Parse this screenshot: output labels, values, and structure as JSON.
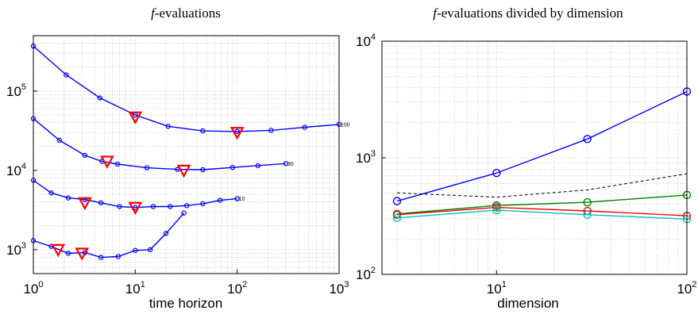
{
  "chart_data": [
    {
      "type": "line",
      "title": "f-evaluations",
      "title_italic": "f",
      "title_rest": "-evaluations",
      "xlabel": "time horizon",
      "ylabel": "",
      "xscale": "log",
      "yscale": "log",
      "xlim": [
        1,
        1000
      ],
      "ylim": [
        500,
        500000
      ],
      "xticks": [
        {
          "base": "10",
          "exp": "0"
        },
        {
          "base": "10",
          "exp": "1"
        },
        {
          "base": "10",
          "exp": "2"
        },
        {
          "base": "10",
          "exp": "3"
        }
      ],
      "yticks": [
        {
          "value": 1000,
          "base": "10",
          "exp": "3"
        },
        {
          "value": 10000,
          "base": "10",
          "exp": "4"
        },
        {
          "value": 100000,
          "base": "10",
          "exp": "5"
        }
      ],
      "grid": true,
      "series": [
        {
          "end_label": "100",
          "color": "#0000ff",
          "points": [
            [
              1,
              370000
            ],
            [
              2.1,
              160000
            ],
            [
              4.5,
              82000
            ],
            [
              10,
              50000
            ],
            [
              21,
              36000
            ],
            [
              46,
              31500
            ],
            [
              100,
              31000
            ],
            [
              215,
              32000
            ],
            [
              460,
              35000
            ],
            [
              1000,
              38000
            ]
          ],
          "markers": [
            [
              10,
              47000
            ],
            [
              100,
              30000
            ]
          ]
        },
        {
          "end_label": "30",
          "color": "#0000ff",
          "points": [
            [
              1,
              45000
            ],
            [
              1.8,
              24000
            ],
            [
              3.2,
              15500
            ],
            [
              4.7,
              13000
            ],
            [
              6.7,
              12000
            ],
            [
              13,
              10800
            ],
            [
              26,
              10300
            ],
            [
              46,
              10200
            ],
            [
              90,
              10900
            ],
            [
              160,
              11500
            ],
            [
              300,
              12200
            ]
          ],
          "markers": [
            [
              5.3,
              13000
            ],
            [
              30,
              10000
            ]
          ]
        },
        {
          "end_label": "10",
          "color": "#0000ff",
          "points": [
            [
              1,
              7500
            ],
            [
              1.5,
              5200
            ],
            [
              2.2,
              4500
            ],
            [
              3.2,
              4300
            ],
            [
              4.6,
              3900
            ],
            [
              7,
              3500
            ],
            [
              10,
              3400
            ],
            [
              15,
              3500
            ],
            [
              22,
              3500
            ],
            [
              32,
              3600
            ],
            [
              46,
              3800
            ],
            [
              68,
              4200
            ],
            [
              100,
              4400
            ]
          ],
          "markers": [
            [
              3.2,
              3900
            ],
            [
              10,
              3400
            ]
          ]
        },
        {
          "end_label": "",
          "color": "#0000ff",
          "points": [
            [
              1,
              1300
            ],
            [
              1.5,
              1100
            ],
            [
              2.2,
              900
            ],
            [
              3.2,
              920
            ],
            [
              4.6,
              800
            ],
            [
              6.8,
              820
            ],
            [
              10,
              980
            ],
            [
              14,
              1000
            ],
            [
              20,
              1600
            ],
            [
              30,
              2900
            ]
          ],
          "markers": [
            [
              1.75,
              1000
            ],
            [
              3,
              900
            ]
          ]
        }
      ]
    },
    {
      "type": "line",
      "title": "f-evaluations divided by dimension",
      "title_italic": "f",
      "title_rest": "-evaluations divided by dimension",
      "xlabel": "dimension",
      "ylabel": "",
      "xscale": "log",
      "yscale": "log",
      "xlim": [
        2.5,
        100
      ],
      "ylim": [
        100,
        10000
      ],
      "xticks": [
        {
          "value": 10,
          "base": "10",
          "exp": "1"
        },
        {
          "value": 100,
          "base": "10",
          "exp": "2"
        }
      ],
      "yticks": [
        {
          "value": 100,
          "base": "10",
          "exp": "2"
        },
        {
          "value": 1000,
          "base": "10",
          "exp": "3"
        },
        {
          "value": 10000,
          "base": "10",
          "exp": "4"
        }
      ],
      "grid": true,
      "x": [
        3,
        10,
        30,
        100
      ],
      "series": [
        {
          "color": "#0000ff",
          "values": [
            425,
            740,
            1450,
            3700
          ],
          "style": "solid",
          "markers": true
        },
        {
          "color": "#008000",
          "values": [
            330,
            390,
            415,
            480
          ],
          "style": "solid",
          "markers": true
        },
        {
          "color": "#ff0000",
          "values": [
            325,
            375,
            350,
            318
          ],
          "style": "solid",
          "markers": true
        },
        {
          "color": "#00bfbf",
          "values": [
            305,
            355,
            325,
            298
          ],
          "style": "solid",
          "markers": true
        },
        {
          "color": "#000000",
          "values": [
            500,
            460,
            530,
            730
          ],
          "style": "dashed",
          "markers": false
        }
      ]
    }
  ]
}
